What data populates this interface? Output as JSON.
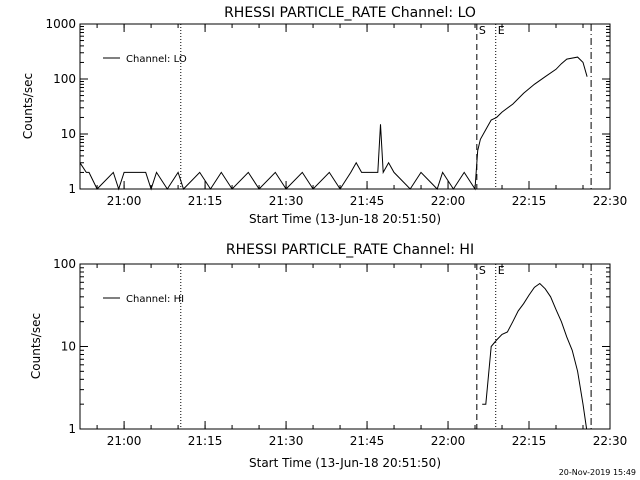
{
  "footer_timestamp": "20-Nov-2019 15:49",
  "chart_data": [
    {
      "type": "line",
      "title": "RHESSI PARTICLE_RATE Channel: LO",
      "xlabel": "Start Time (13-Jun-18 20:51:50)",
      "ylabel": "Counts/sec",
      "yscale": "log",
      "ylim": [
        1,
        1000
      ],
      "xlim": [
        "20:51:50",
        "22:30:00"
      ],
      "x_ticks": [
        "21:00",
        "21:15",
        "21:30",
        "21:45",
        "22:00",
        "22:15",
        "22:30"
      ],
      "y_ticks": [
        "1",
        "10",
        "100",
        "1000"
      ],
      "legend": {
        "label": "Channel: LO",
        "position": "top-left"
      },
      "vlines": [
        {
          "time": "21:10:30",
          "style": "dotted",
          "label": ""
        },
        {
          "time": "22:05:20",
          "style": "dashed",
          "label": "S"
        },
        {
          "time": "22:08:50",
          "style": "dotted",
          "label": "E"
        },
        {
          "time": "22:26:30",
          "style": "dashdot",
          "label": ""
        }
      ],
      "series": [
        {
          "name": "Channel: LO",
          "x": [
            "20:51:50",
            "20:53:00",
            "20:53:30",
            "20:55:00",
            "20:58:00",
            "20:59:00",
            "21:00:00",
            "21:04:00",
            "21:05:00",
            "21:06:00",
            "21:08:00",
            "21:10:00",
            "21:11:00",
            "21:14:00",
            "21:16:00",
            "21:18:00",
            "21:20:00",
            "21:23:00",
            "21:25:00",
            "21:28:00",
            "21:30:00",
            "21:33:00",
            "21:35:00",
            "21:38:00",
            "21:40:00",
            "21:42:00",
            "21:43:00",
            "21:44:00",
            "21:46:00",
            "21:47:00",
            "21:47:30",
            "21:48:00",
            "21:49:00",
            "21:50:00",
            "21:53:00",
            "21:55:00",
            "21:58:00",
            "21:59:00",
            "22:01:00",
            "22:03:00",
            "22:05:00",
            "22:05:30",
            "22:06:00",
            "22:07:00",
            "22:08:00",
            "22:09:00",
            "22:10:00",
            "22:12:00",
            "22:14:00",
            "22:16:00",
            "22:18:00",
            "22:20:00",
            "22:21:00",
            "22:22:00",
            "22:24:00",
            "22:25:00",
            "22:25:45"
          ],
          "y": [
            3,
            2,
            2,
            1,
            2,
            1,
            2,
            2,
            1,
            2,
            1,
            2,
            1,
            2,
            1,
            2,
            1,
            2,
            1,
            2,
            1,
            2,
            1,
            2,
            1,
            2,
            3,
            2,
            2,
            2,
            15,
            2,
            3,
            2,
            1,
            2,
            1,
            2,
            1,
            2,
            1,
            5,
            8,
            12,
            18,
            20,
            25,
            35,
            55,
            80,
            110,
            150,
            190,
            230,
            250,
            200,
            110
          ]
        }
      ]
    },
    {
      "type": "line",
      "title": "RHESSI PARTICLE_RATE Channel: HI",
      "xlabel": "Start Time (13-Jun-18 20:51:50)",
      "ylabel": "Counts/sec",
      "yscale": "log",
      "ylim": [
        1,
        100
      ],
      "xlim": [
        "20:51:50",
        "22:30:00"
      ],
      "x_ticks": [
        "21:00",
        "21:15",
        "21:30",
        "21:45",
        "22:00",
        "22:15",
        "22:30"
      ],
      "y_ticks": [
        "1",
        "10",
        "100"
      ],
      "legend": {
        "label": "Channel: HI",
        "position": "top-left"
      },
      "vlines": [
        {
          "time": "21:10:30",
          "style": "dotted",
          "label": ""
        },
        {
          "time": "22:05:20",
          "style": "dashed",
          "label": "S"
        },
        {
          "time": "22:08:50",
          "style": "dotted",
          "label": "E"
        },
        {
          "time": "22:26:30",
          "style": "dashdot",
          "label": ""
        }
      ],
      "series": [
        {
          "name": "Channel: HI",
          "x": [
            "22:06:20",
            "22:07:00",
            "22:08:00",
            "22:09:00",
            "22:10:00",
            "22:11:00",
            "22:12:00",
            "22:13:00",
            "22:14:00",
            "22:15:00",
            "22:16:00",
            "22:17:00",
            "22:18:00",
            "22:19:00",
            "22:20:00",
            "22:21:00",
            "22:22:00",
            "22:23:00",
            "22:24:00",
            "22:25:00",
            "22:25:40"
          ],
          "y": [
            2,
            2,
            10,
            12,
            14,
            15,
            20,
            27,
            33,
            42,
            52,
            58,
            50,
            40,
            28,
            20,
            13,
            9,
            5,
            2,
            1
          ]
        }
      ]
    }
  ]
}
